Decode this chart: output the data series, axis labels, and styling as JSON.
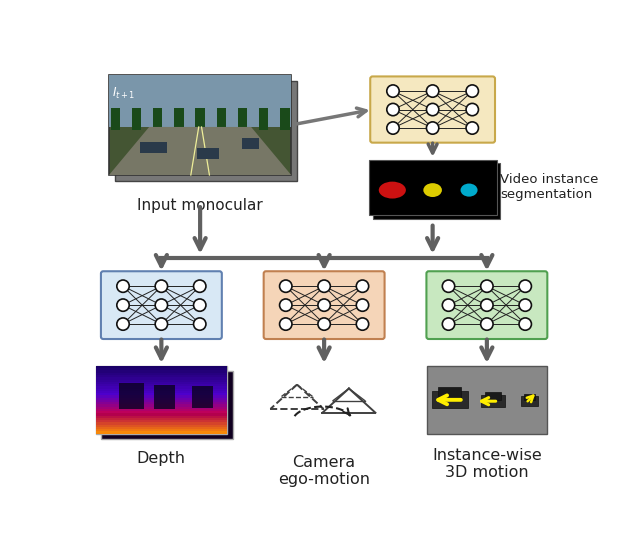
{
  "bg_color": "#ffffff",
  "input_label": "Input monocular",
  "vis_seg_label": "Video instance\nsegmentation",
  "depth_label": "Depth",
  "ego_label": "Camera\nego-motion",
  "motion_label": "Instance-wise\n3D motion",
  "nn_yellow_bg": "#f5e8c0",
  "nn_blue_bg": "#d8e8f5",
  "nn_orange_bg": "#f5d5b8",
  "nn_green_bg": "#c8e8c0",
  "nn_border_yellow": "#c8a84a",
  "nn_border_blue": "#6080b0",
  "nn_border_orange": "#c08050",
  "nn_border_green": "#50a050",
  "node_color": "#ffffff",
  "node_edge": "#111111",
  "seg_colors": [
    "#cc1111",
    "#ddcc00",
    "#00aacc"
  ],
  "arrow_color": "#606060",
  "arrow_lw": 3.0,
  "arrow_scale": 20
}
